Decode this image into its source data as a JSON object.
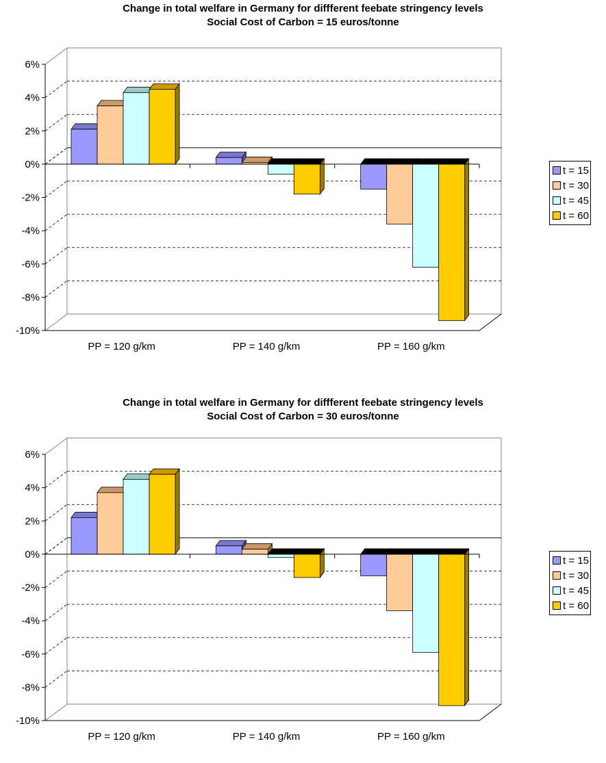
{
  "colors": {
    "t15": "#9999ff",
    "t15_top": "#7777cc",
    "t15_side": "#55559a",
    "t30": "#ffcc99",
    "t30_top": "#cc9966",
    "t30_side": "#a07850",
    "t45": "#ccffff",
    "t45_top": "#99cccc",
    "t45_side": "#80a8a8",
    "t60": "#ffcc00",
    "t60_top": "#cc9900",
    "t60_side": "#997a00"
  },
  "chart_data": [
    {
      "type": "bar",
      "title": "Change in total welfare in Germany for diffferent feebate stringency levels",
      "subtitle": "Social Cost of Carbon = 15 euros/tonne",
      "xlabel": "",
      "ylabel": "",
      "categories": [
        "PP = 120 g/km",
        "PP = 140 g/km",
        "PP = 160 g/km"
      ],
      "ylim": [
        -10,
        6
      ],
      "yticks": [
        "6%",
        "4%",
        "2%",
        "0%",
        "-2%",
        "-4%",
        "-6%",
        "-8%",
        "-10%"
      ],
      "grid": true,
      "legend_position": "right",
      "series": [
        {
          "name": "t = 15",
          "values": [
            2.1,
            0.4,
            -1.5
          ]
        },
        {
          "name": "t = 30",
          "values": [
            3.5,
            0.1,
            -3.6
          ]
        },
        {
          "name": "t = 45",
          "values": [
            4.3,
            -0.6,
            -6.2
          ]
        },
        {
          "name": "t = 60",
          "values": [
            4.5,
            -1.8,
            -9.4
          ]
        }
      ]
    },
    {
      "type": "bar",
      "title": "Change in total welfare in Germany for diffferent feebate stringency levels",
      "subtitle": "Social Cost of Carbon = 30 euros/tonne",
      "xlabel": "",
      "ylabel": "",
      "categories": [
        "PP = 120 g/km",
        "PP = 140 g/km",
        "PP = 160 g/km"
      ],
      "ylim": [
        -10,
        6
      ],
      "yticks": [
        "6%",
        "4%",
        "2%",
        "0%",
        "-2%",
        "-4%",
        "-6%",
        "-8%",
        "-10%"
      ],
      "grid": true,
      "legend_position": "right",
      "series": [
        {
          "name": "t = 15",
          "values": [
            2.2,
            0.5,
            -1.3
          ]
        },
        {
          "name": "t = 30",
          "values": [
            3.7,
            0.3,
            -3.4
          ]
        },
        {
          "name": "t = 45",
          "values": [
            4.5,
            -0.2,
            -5.9
          ]
        },
        {
          "name": "t = 60",
          "values": [
            4.8,
            -1.4,
            -9.1
          ]
        }
      ]
    }
  ]
}
